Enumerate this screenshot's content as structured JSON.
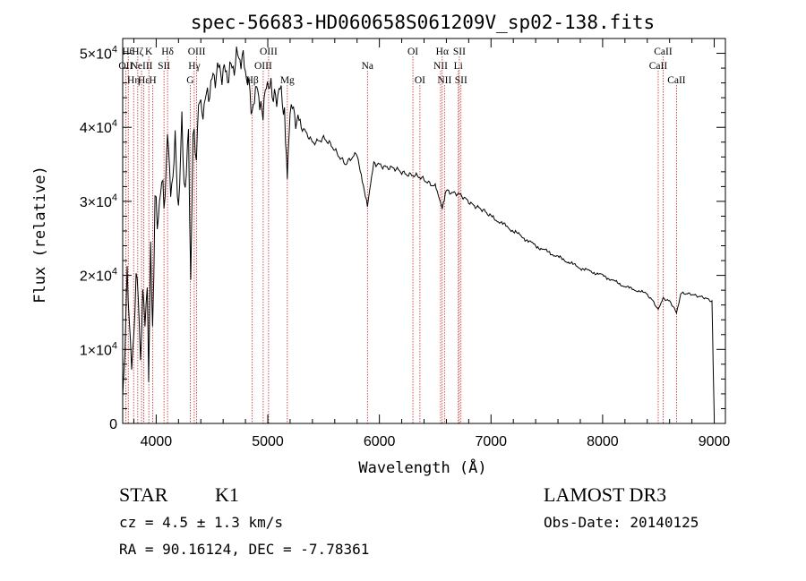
{
  "chart_data": {
    "type": "line",
    "title": "spec-56683-HD060658S061209V_sp02-138.fits",
    "xlabel": "Wavelength (Å)",
    "ylabel": "Flux (relative)",
    "xlim": [
      3700,
      9100
    ],
    "ylim": [
      0,
      52000
    ],
    "xticks": [
      4000,
      5000,
      6000,
      7000,
      8000,
      9000
    ],
    "yticks": [
      {
        "value": 0,
        "mant": "0",
        "exp": ""
      },
      {
        "value": 10000,
        "mant": "1×10",
        "exp": "4"
      },
      {
        "value": 20000,
        "mant": "2×10",
        "exp": "4"
      },
      {
        "value": 30000,
        "mant": "3×10",
        "exp": "4"
      },
      {
        "value": 40000,
        "mant": "4×10",
        "exp": "4"
      },
      {
        "value": 50000,
        "mant": "5×10",
        "exp": "4"
      }
    ],
    "series": [
      {
        "name": "flux",
        "x": [
          3700,
          3720,
          3740,
          3760,
          3780,
          3800,
          3820,
          3840,
          3860,
          3880,
          3900,
          3920,
          3933,
          3950,
          3968,
          3990,
          4010,
          4040,
          4070,
          4101,
          4130,
          4170,
          4200,
          4230,
          4260,
          4290,
          4310,
          4330,
          4350,
          4380,
          4420,
          4460,
          4500,
          4550,
          4600,
          4650,
          4700,
          4750,
          4800,
          4861,
          4900,
          4957,
          5007,
          5050,
          5100,
          5150,
          5175,
          5200,
          5250,
          5300,
          5400,
          5500,
          5600,
          5700,
          5800,
          5893,
          5950,
          6000,
          6100,
          6200,
          6300,
          6400,
          6500,
          6563,
          6600,
          6700,
          6800,
          6900,
          7000,
          7200,
          7400,
          7600,
          7800,
          8000,
          8200,
          8400,
          8498,
          8542,
          8600,
          8662,
          8700,
          8800,
          8900,
          8980,
          8990,
          9000
        ],
        "y": [
          4000,
          9000,
          20000,
          14000,
          7000,
          12000,
          21000,
          17000,
          9000,
          18000,
          13000,
          19000,
          6000,
          23000,
          12000,
          31000,
          26000,
          34000,
          30000,
          38500,
          31000,
          36000,
          30000,
          40000,
          33000,
          38000,
          20000,
          38000,
          35000,
          42000,
          43000,
          45000,
          46000,
          47000,
          47500,
          48000,
          48500,
          49000,
          48000,
          42000,
          45000,
          43000,
          46500,
          44000,
          45000,
          42000,
          33000,
          43000,
          42000,
          40000,
          38000,
          38500,
          37000,
          35000,
          36500,
          29500,
          35000,
          35000,
          34500,
          34000,
          33500,
          33000,
          32000,
          29000,
          31500,
          31000,
          30000,
          29000,
          28000,
          26000,
          24000,
          22500,
          21000,
          20000,
          18500,
          17500,
          15500,
          17000,
          16500,
          15000,
          17500,
          17500,
          17000,
          16500,
          8000,
          1000
        ]
      }
    ],
    "lines": [
      {
        "x": 3727,
        "label": "OII",
        "row": 2
      },
      {
        "x": 3750,
        "label": "Hθ",
        "row": 1
      },
      {
        "x": 3798,
        "label": "Hη",
        "row": 3
      },
      {
        "x": 3835,
        "label": "Hζ",
        "row": 1
      },
      {
        "x": 3869,
        "label": "NeIII",
        "row": 2
      },
      {
        "x": 3889,
        "label": "Hε",
        "row": 3
      },
      {
        "x": 3934,
        "label": "K",
        "row": 1
      },
      {
        "x": 3969,
        "label": "H",
        "row": 3
      },
      {
        "x": 4070,
        "label": "SII",
        "row": 2
      },
      {
        "x": 4102,
        "label": "Hδ",
        "row": 1
      },
      {
        "x": 4305,
        "label": "G",
        "row": 3
      },
      {
        "x": 4341,
        "label": "Hγ",
        "row": 2
      },
      {
        "x": 4363,
        "label": "OIII",
        "row": 1
      },
      {
        "x": 4861,
        "label": "Hβ",
        "row": 3
      },
      {
        "x": 4959,
        "label": "OIII",
        "row": 2
      },
      {
        "x": 5007,
        "label": "OIII",
        "row": 1
      },
      {
        "x": 5175,
        "label": "Mg",
        "row": 3
      },
      {
        "x": 5893,
        "label": "Na",
        "row": 2
      },
      {
        "x": 6300,
        "label": "OI",
        "row": 1
      },
      {
        "x": 6363,
        "label": "OI",
        "row": 3
      },
      {
        "x": 6548,
        "label": "NII",
        "row": 2
      },
      {
        "x": 6563,
        "label": "Hα",
        "row": 1
      },
      {
        "x": 6583,
        "label": "NII",
        "row": 3
      },
      {
        "x": 6707,
        "label": "Li",
        "row": 2
      },
      {
        "x": 6716,
        "label": "SII",
        "row": 1
      },
      {
        "x": 6731,
        "label": "SII",
        "row": 3
      },
      {
        "x": 8498,
        "label": "CaII",
        "row": 2
      },
      {
        "x": 8542,
        "label": "CaII",
        "row": 1
      },
      {
        "x": 8662,
        "label": "CaII",
        "row": 3
      }
    ],
    "colors": {
      "axes": "#000000",
      "data": "#000000",
      "lines": "#cc2222"
    }
  },
  "info": {
    "class_label": "STAR",
    "subclass": "K1",
    "survey": "LAMOST DR3",
    "cz": "cz = 4.5 ± 1.3 km/s",
    "obs_date": "Obs-Date: 20140125",
    "radec": "RA =  90.16124, DEC =  -7.78361"
  }
}
